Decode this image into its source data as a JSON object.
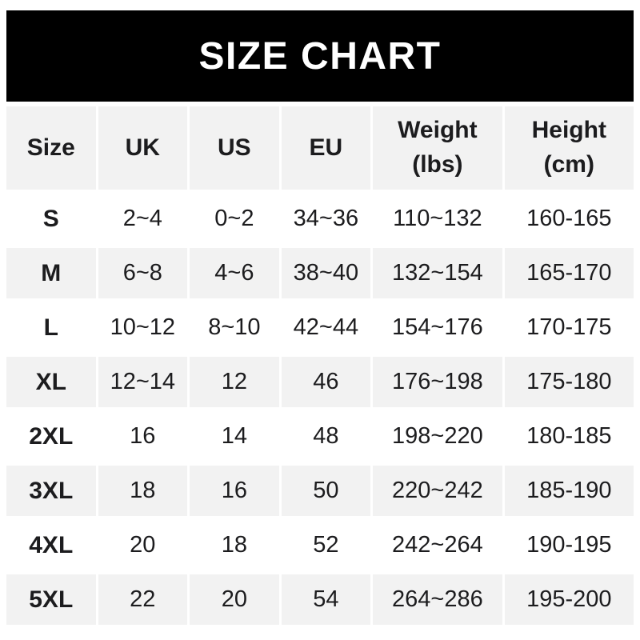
{
  "banner": {
    "title": "SIZE CHART",
    "bg_color": "#000000",
    "text_color": "#ffffff"
  },
  "table": {
    "colors": {
      "stripe": "#f2f2f2",
      "text": "#1c1c1e"
    },
    "columns": [
      {
        "id": "size",
        "lines": [
          "Size"
        ]
      },
      {
        "id": "uk",
        "lines": [
          "UK"
        ]
      },
      {
        "id": "us",
        "lines": [
          "US"
        ]
      },
      {
        "id": "eu",
        "lines": [
          "EU"
        ]
      },
      {
        "id": "weight_lbs",
        "lines": [
          "Weight",
          "(lbs)"
        ]
      },
      {
        "id": "height_cm",
        "lines": [
          "Height",
          "(cm)"
        ]
      }
    ],
    "rows": [
      {
        "size": "S",
        "uk": "2~4",
        "us": "0~2",
        "eu": "34~36",
        "weight_lbs": "110~132",
        "height_cm": "160-165"
      },
      {
        "size": "M",
        "uk": "6~8",
        "us": "4~6",
        "eu": "38~40",
        "weight_lbs": "132~154",
        "height_cm": "165-170"
      },
      {
        "size": "L",
        "uk": "10~12",
        "us": "8~10",
        "eu": "42~44",
        "weight_lbs": "154~176",
        "height_cm": "170-175"
      },
      {
        "size": "XL",
        "uk": "12~14",
        "us": "12",
        "eu": "46",
        "weight_lbs": "176~198",
        "height_cm": "175-180"
      },
      {
        "size": "2XL",
        "uk": "16",
        "us": "14",
        "eu": "48",
        "weight_lbs": "198~220",
        "height_cm": "180-185"
      },
      {
        "size": "3XL",
        "uk": "18",
        "us": "16",
        "eu": "50",
        "weight_lbs": "220~242",
        "height_cm": "185-190"
      },
      {
        "size": "4XL",
        "uk": "20",
        "us": "18",
        "eu": "52",
        "weight_lbs": "242~264",
        "height_cm": "190-195"
      },
      {
        "size": "5XL",
        "uk": "22",
        "us": "20",
        "eu": "54",
        "weight_lbs": "264~286",
        "height_cm": "195-200"
      }
    ]
  }
}
